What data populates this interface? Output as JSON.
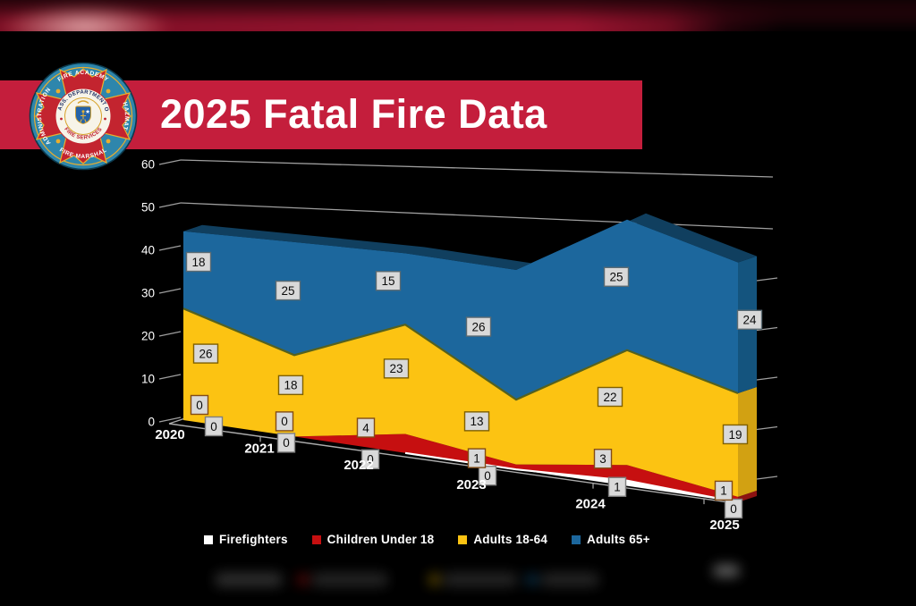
{
  "banner": {
    "title": "2025 Fatal Fire Data",
    "bg_color": "#C41E3C",
    "text_color": "#FFFFFF"
  },
  "logo": {
    "outer_top": "FIRE ACADEMY",
    "outer_right": "HAZMAT",
    "outer_bottom": "FIRE MARSHAL",
    "outer_left": "ADMINISTRATION",
    "inner_top": "MASS. DEPARTMENT OF",
    "inner_bottom": "FIRE SERVICES",
    "colors": {
      "ring": "#2E86AC",
      "cross": "#C3242F",
      "trim": "#EBAE2D",
      "inner_text": "#1F2F66",
      "inner_text2": "#BE2230"
    }
  },
  "chart_data": {
    "type": "area",
    "variant": "3d-stacked-area",
    "title": "2025 Fatal Fire Data",
    "categories": [
      "2020",
      "2021",
      "2022",
      "2023",
      "2024",
      "2025"
    ],
    "series": [
      {
        "name": "Firefighters",
        "values": [
          0,
          0,
          0,
          0,
          1,
          0
        ],
        "color": "#FFFFFF",
        "side_color": "#BFBFBF",
        "label_border": "#7F7F7F",
        "edge_color": "#FFFFFF",
        "edge_start_index": 2
      },
      {
        "name": "Children Under 18",
        "values": [
          0,
          0,
          4,
          1,
          3,
          1
        ],
        "color": "#C60F10",
        "side_color": "#8C1212",
        "label_border": "#824C16"
      },
      {
        "name": "Adults 18-64",
        "values": [
          26,
          18,
          23,
          13,
          22,
          19
        ],
        "color": "#FCC312",
        "side_color": "#D2A112",
        "label_border": "#7F6000",
        "edge_color": "#55611E"
      },
      {
        "name": "Adults 65+",
        "values": [
          18,
          25,
          15,
          26,
          25,
          24
        ],
        "color": "#1C679D",
        "side_color": "#14547E",
        "top_color": "#103F5F",
        "label_border": "#5A6A72"
      }
    ],
    "y_ticks": [
      0,
      10,
      20,
      30,
      40,
      50,
      60
    ],
    "ylim": [
      0,
      60
    ],
    "grid": "back-wall-partial",
    "legend_position": "bottom",
    "value_labels": true,
    "label_box_bg": "#D9D9D9",
    "axis_color": "#ABABAB",
    "grid_color": "#9E9E9E"
  }
}
